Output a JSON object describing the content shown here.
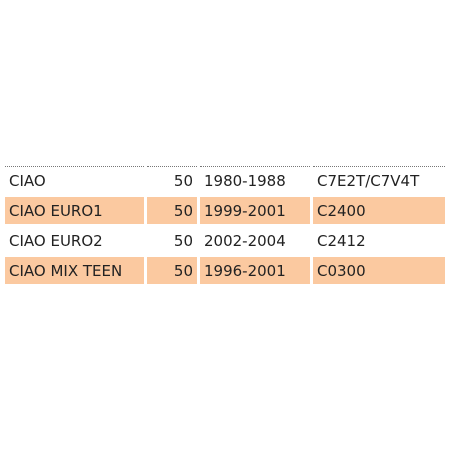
{
  "table": {
    "rows": [
      [
        "CIAO",
        50,
        "1980-1988",
        "C7E2T/C7V4T"
      ],
      [
        "CIAO EURO1",
        50,
        "1999-2001",
        "C2400"
      ],
      [
        "CIAO EURO2",
        50,
        "2002-2004",
        "C2412"
      ],
      [
        "CIAO MIX TEEN",
        50,
        "1996-2001",
        "C0300"
      ]
    ]
  }
}
